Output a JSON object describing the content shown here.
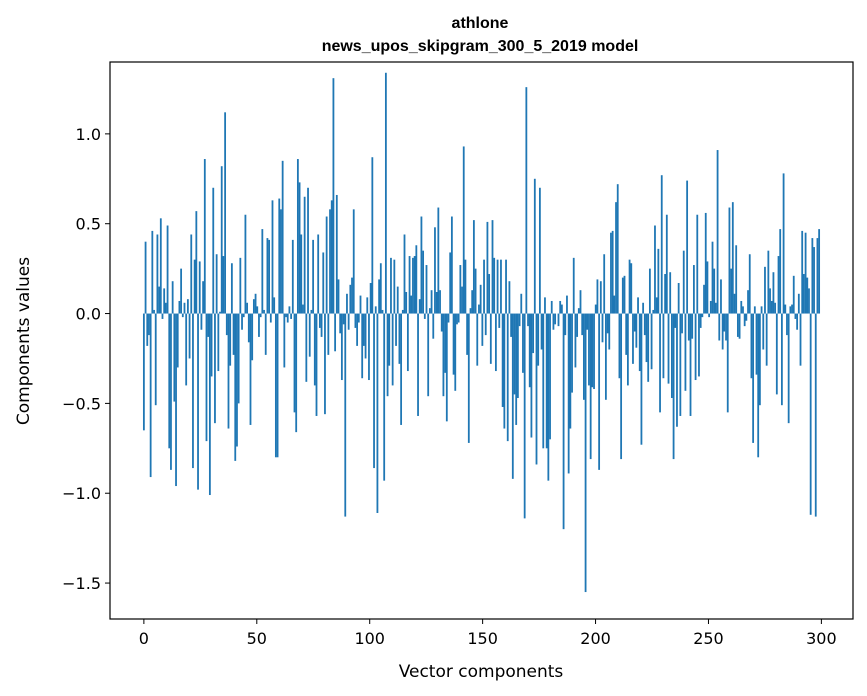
{
  "chart_data": {
    "type": "bar",
    "title": "athlone",
    "subtitle": "news_upos_skipgram_300_5_2019 model",
    "xlabel": "Vector components",
    "ylabel": "Components values",
    "xlim": [
      -15,
      314
    ],
    "ylim": [
      -1.7,
      1.4
    ],
    "xticks": [
      0,
      50,
      100,
      150,
      200,
      250,
      300
    ],
    "xtick_labels": [
      "0",
      "50",
      "100",
      "150",
      "200",
      "250",
      "300"
    ],
    "yticks": [
      -1.5,
      -1.0,
      -0.5,
      0.0,
      0.5,
      1.0
    ],
    "ytick_labels": [
      "−1.5",
      "−1.0",
      "−0.5",
      "0.0",
      "0.5",
      "1.0"
    ],
    "bar_color": "#1f77b4",
    "series": [
      {
        "name": "athlone",
        "values": [
          -0.65,
          0.4,
          -0.18,
          -0.12,
          -0.91,
          0.46,
          0.02,
          -0.51,
          0.44,
          0.15,
          0.53,
          -0.03,
          0.14,
          0.06,
          0.49,
          -0.75,
          -0.87,
          0.18,
          -0.49,
          -0.96,
          -0.3,
          0.07,
          0.25,
          -0.02,
          0.06,
          -0.4,
          0.08,
          -0.25,
          0.44,
          -0.86,
          0.3,
          0.57,
          -0.98,
          0.29,
          -0.09,
          0.18,
          0.86,
          -0.71,
          -0.13,
          -1.01,
          -0.35,
          0.7,
          -0.61,
          0.33,
          -0.32,
          0.01,
          0.82,
          0.32,
          1.12,
          -0.12,
          -0.64,
          -0.29,
          0.28,
          -0.23,
          -0.82,
          -0.74,
          -0.5,
          0.31,
          -0.09,
          -0.02,
          0.55,
          0.06,
          -0.16,
          -0.62,
          -0.26,
          0.08,
          0.11,
          0.04,
          -0.13,
          -0.02,
          0.47,
          0.02,
          -0.23,
          0.42,
          0.41,
          -0.05,
          0.63,
          0.09,
          -0.8,
          -0.8,
          0.64,
          0.58,
          0.85,
          -0.3,
          -0.02,
          -0.05,
          0.04,
          -0.03,
          0.41,
          -0.55,
          -0.66,
          0.86,
          0.73,
          0.44,
          0.05,
          0.65,
          -0.38,
          0.7,
          -0.24,
          0.02,
          0.41,
          -0.4,
          -0.57,
          0.44,
          -0.08,
          -0.13,
          0.34,
          -0.56,
          0.54,
          -0.23,
          0.58,
          0.63,
          1.31,
          -0.21,
          0.66,
          0.19,
          -0.11,
          -0.37,
          -0.06,
          -1.13,
          0.11,
          -0.09,
          0.16,
          0.2,
          0.58,
          -0.08,
          -0.18,
          -0.05,
          0.1,
          -0.36,
          -0.18,
          -0.25,
          0.09,
          -0.37,
          0.17,
          0.87,
          -0.86,
          0.04,
          -1.11,
          0.19,
          0.28,
          0.02,
          -0.93,
          1.34,
          -0.46,
          -0.29,
          0.31,
          -0.4,
          0.3,
          -0.18,
          0.15,
          -0.28,
          -0.62,
          0.02,
          0.44,
          0.12,
          -0.32,
          0.32,
          0.1,
          0.31,
          0.32,
          0.38,
          -0.57,
          0.08,
          0.54,
          0.35,
          -0.03,
          0.27,
          -0.46,
          0.03,
          0.13,
          -0.14,
          0.48,
          0.12,
          0.59,
          0.13,
          -0.1,
          -0.46,
          -0.33,
          -0.6,
          -0.05,
          0.34,
          0.54,
          -0.34,
          -0.43,
          -0.06,
          -0.05,
          0.27,
          0.15,
          0.93,
          0.3,
          -0.23,
          -0.72,
          0.03,
          0.13,
          0.52,
          0.25,
          -0.29,
          0.05,
          0.16,
          -0.18,
          0.3,
          -0.12,
          0.51,
          0.22,
          -0.28,
          0.52,
          0.31,
          -0.32,
          0.3,
          -0.08,
          0.3,
          -0.52,
          -0.64,
          0.3,
          -0.71,
          0.18,
          -0.13,
          -0.92,
          -0.45,
          -0.62,
          -0.47,
          -0.07,
          0.11,
          -0.33,
          -1.14,
          1.26,
          -0.07,
          -0.41,
          -0.69,
          -0.22,
          0.75,
          -0.84,
          -0.29,
          0.7,
          -0.2,
          -0.75,
          0.09,
          -0.75,
          -0.93,
          -0.7,
          0.07,
          -0.09,
          -0.06,
          0.0,
          -0.07,
          0.07,
          0.05,
          -1.2,
          -0.12,
          0.1,
          -0.89,
          -0.64,
          -0.44,
          0.31,
          -0.3,
          -0.13,
          0.03,
          0.13,
          -0.12,
          -0.48,
          -1.55,
          -0.09,
          -0.4,
          -0.81,
          -0.41,
          -0.42,
          0.05,
          0.19,
          -0.87,
          0.18,
          -0.16,
          0.33,
          -0.48,
          -0.11,
          -0.2,
          0.45,
          0.46,
          0.1,
          0.62,
          0.72,
          -0.36,
          -0.81,
          0.2,
          0.21,
          -0.23,
          -0.4,
          0.3,
          0.28,
          -0.28,
          -0.1,
          -0.19,
          0.09,
          -0.32,
          -0.73,
          0.06,
          -0.12,
          -0.27,
          -0.38,
          0.25,
          -0.31,
          0.02,
          0.49,
          0.09,
          0.36,
          -0.55,
          0.77,
          -0.36,
          0.22,
          0.55,
          -0.39,
          0.23,
          -0.47,
          -0.81,
          -0.08,
          -0.63,
          0.17,
          -0.57,
          -0.11,
          0.35,
          -0.43,
          0.74,
          -0.15,
          -0.57,
          -0.14,
          0.27,
          -0.37,
          0.55,
          -0.35,
          -0.08,
          -0.02,
          0.16,
          0.56,
          0.29,
          -0.02,
          0.07,
          0.4,
          0.25,
          0.06,
          0.91,
          -0.15,
          0.19,
          -0.2,
          -0.1,
          -0.15,
          -0.55,
          0.59,
          0.25,
          0.62,
          0.11,
          0.38,
          -0.13,
          -0.14,
          0.07,
          0.04,
          -0.07,
          -0.04,
          0.13,
          0.33,
          -0.36,
          -0.72,
          0.04,
          -0.34,
          -0.8,
          -0.51,
          0.04,
          -0.2,
          0.26,
          -0.29,
          0.35,
          0.14,
          0.07,
          0.23,
          0.06,
          -0.45,
          0.32,
          0.47,
          -0.51,
          0.78,
          0.05,
          -0.12,
          -0.61,
          0.04,
          0.05,
          0.21,
          -0.03,
          -0.09,
          0.11,
          -0.29,
          0.46,
          0.22,
          0.45,
          0.2,
          0.14,
          -1.12,
          0.42,
          0.37,
          -1.13,
          0.42,
          0.47
        ]
      }
    ]
  }
}
